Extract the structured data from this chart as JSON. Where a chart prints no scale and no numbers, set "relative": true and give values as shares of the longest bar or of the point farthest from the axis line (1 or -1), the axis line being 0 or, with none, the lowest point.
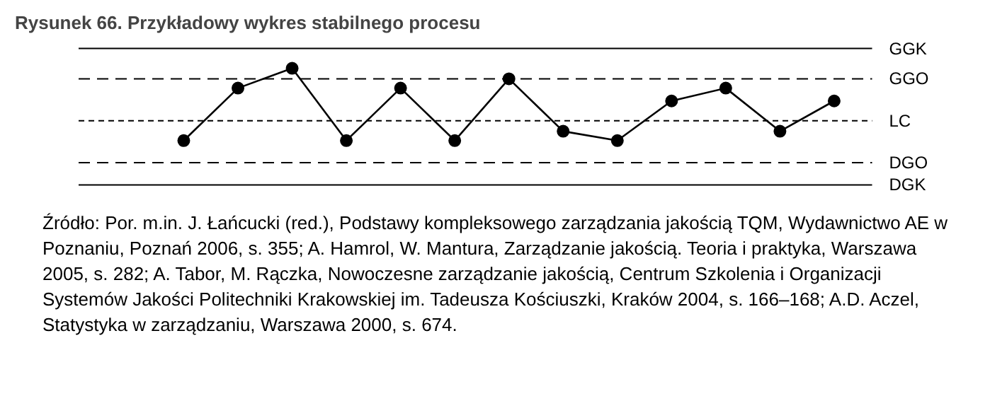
{
  "chart_data": {
    "type": "line",
    "title": "Rysunek 66. Przykładowy wykres stabilnego procesu",
    "relative": true,
    "tick_labels": false,
    "grid": false,
    "marker": "circle",
    "line_style": "solid",
    "categories": [
      null,
      null,
      null,
      null,
      null,
      null,
      null,
      null,
      null,
      null,
      null,
      null,
      null
    ],
    "series": [
      {
        "color": "#000000",
        "values": [
          0.38,
          0.83,
          1,
          0.38,
          0.83,
          0.38,
          0.91,
          0.46,
          0.38,
          0.72,
          0.83,
          0.46,
          0.72
        ]
      }
    ],
    "ref_lines": [
      {
        "axis": "y",
        "value": 1.17,
        "label": "GGK",
        "line_style": "solid",
        "color": "#000000"
      },
      {
        "axis": "y",
        "value": 0.91,
        "label": "GGO",
        "line_style": "dashed",
        "color": "#000000"
      },
      {
        "axis": "y",
        "value": 0.55,
        "label": "LC",
        "line_style": "dotted",
        "color": "#000000"
      },
      {
        "axis": "y",
        "value": 0.19,
        "label": "DGO",
        "line_style": "dashed",
        "color": "#000000"
      },
      {
        "axis": "y",
        "value": 0,
        "label": "DGK",
        "line_style": "solid",
        "color": "#000000"
      }
    ],
    "annotations": [
      "Źródło: Por. m.in. J. Łańcucki (red.), Podstawy kompleksowego zarządzania jakością TQM, Wydawnictwo AE w Poznaniu, Poznań 2006, s. 355; A. Hamrol, W. Mantura, Zarządzanie jakością. Teoria i praktyka, Warszawa 2005, s. 282; A. Tabor, M. Rączka, Nowoczesne zarządzanie jakością, Centrum Szkolenia i Organizacji Systemów Jakości Politechniki Krakowskiej im. Tadeusza Kościuszki, Kraków 2004, s. 166–168; A.D. Aczel, Statystyka w zarządzaniu, Warszawa 2000, s. 674."
    ]
  }
}
